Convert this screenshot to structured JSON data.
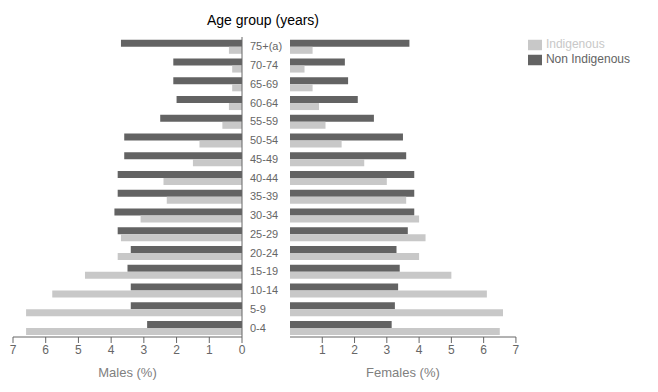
{
  "chart_data": [
    {
      "type": "bar",
      "orientation": "horizontal",
      "title": "Age group (years)",
      "categories": [
        "0-4",
        "5-9",
        "10-14",
        "15-19",
        "20-24",
        "25-29",
        "30-34",
        "35-39",
        "40-44",
        "45-49",
        "50-54",
        "55-59",
        "60-64",
        "65-69",
        "70-74",
        "75+(a)"
      ],
      "xlabel": "Males (%)",
      "xlim": [
        0,
        7
      ],
      "xticks": [
        0,
        1,
        2,
        3,
        4,
        5,
        6,
        7
      ],
      "grid": false,
      "series": [
        {
          "name": "Non Indigenous",
          "color": "#636363",
          "values": [
            2.9,
            3.4,
            3.4,
            3.5,
            3.4,
            3.8,
            3.9,
            3.8,
            3.8,
            3.6,
            3.6,
            2.5,
            2.0,
            2.1,
            2.1,
            3.7
          ]
        },
        {
          "name": "Indigenous",
          "color": "#c8c8c8",
          "values": [
            6.6,
            6.6,
            5.8,
            4.8,
            3.8,
            3.7,
            3.1,
            2.3,
            2.4,
            1.5,
            1.3,
            0.6,
            0.4,
            0.3,
            0.3,
            0.4
          ]
        }
      ]
    },
    {
      "type": "bar",
      "orientation": "horizontal",
      "categories": [
        "0-4",
        "5-9",
        "10-14",
        "15-19",
        "20-24",
        "25-29",
        "30-34",
        "35-39",
        "40-44",
        "45-49",
        "50-54",
        "55-59",
        "60-64",
        "65-69",
        "70-74",
        "75+(a)"
      ],
      "xlabel": "Females (%)",
      "xlim": [
        0,
        7
      ],
      "xticks": [
        0,
        1,
        2,
        3,
        4,
        5,
        6,
        7
      ],
      "grid": false,
      "legend": "upper right",
      "series": [
        {
          "name": "Non Indigenous",
          "color": "#636363",
          "values": [
            3.15,
            3.25,
            3.35,
            3.4,
            3.3,
            3.65,
            3.85,
            3.85,
            3.85,
            3.6,
            3.5,
            2.6,
            2.1,
            1.8,
            1.7,
            3.7
          ]
        },
        {
          "name": "Indigenous",
          "color": "#c8c8c8",
          "values": [
            6.5,
            6.6,
            6.1,
            5.0,
            4.0,
            4.2,
            4.0,
            3.6,
            3.0,
            2.3,
            1.6,
            1.1,
            0.9,
            0.7,
            0.45,
            0.7
          ]
        }
      ]
    }
  ]
}
